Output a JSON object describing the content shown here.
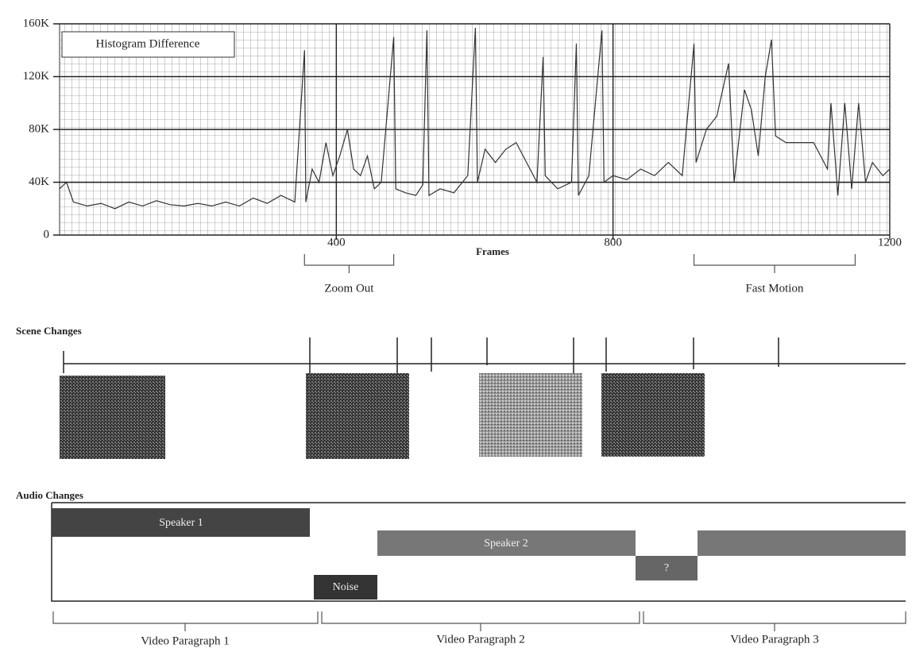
{
  "chart_data": {
    "type": "line",
    "legend_label": "Histogram Difference",
    "x_label": "Frames",
    "xlim": [
      0,
      1200
    ],
    "xticks": [
      400,
      800,
      1200
    ],
    "ylim": [
      0,
      160000
    ],
    "yticks": [
      0,
      {
        "value": 40000,
        "label": "40K"
      },
      {
        "value": 80000,
        "label": "80K"
      },
      {
        "value": 120000,
        "label": "120K"
      },
      {
        "value": 160000,
        "label": "160K"
      }
    ],
    "grid": true,
    "color": "#333333",
    "x": [
      0,
      10,
      20,
      40,
      60,
      80,
      100,
      120,
      140,
      160,
      180,
      200,
      220,
      240,
      260,
      280,
      300,
      320,
      340,
      354,
      356,
      365,
      375,
      385,
      395,
      405,
      416,
      425,
      435,
      445,
      455,
      465,
      483,
      486,
      500,
      515,
      525,
      531,
      534,
      550,
      570,
      590,
      601,
      604,
      615,
      630,
      645,
      660,
      675,
      690,
      699,
      702,
      720,
      740,
      747,
      750,
      765,
      784,
      787,
      800,
      820,
      840,
      860,
      880,
      900,
      917,
      920,
      935,
      950,
      967,
      975,
      990,
      1000,
      1010,
      1020,
      1029,
      1035,
      1050,
      1070,
      1090,
      1110,
      1115,
      1125,
      1135,
      1145,
      1155,
      1165,
      1175,
      1190,
      1200
    ],
    "values": [
      35000,
      40000,
      25000,
      22000,
      24000,
      20000,
      25000,
      22000,
      26000,
      23000,
      22000,
      24000,
      22000,
      25000,
      22000,
      28000,
      24000,
      30000,
      25000,
      140000,
      25000,
      50000,
      40000,
      70000,
      45000,
      60000,
      80000,
      50000,
      45000,
      60000,
      35000,
      40000,
      150000,
      35000,
      32000,
      30000,
      38000,
      155000,
      30000,
      35000,
      32000,
      45000,
      157000,
      40000,
      65000,
      55000,
      65000,
      70000,
      55000,
      40000,
      135000,
      45000,
      35000,
      40000,
      145000,
      30000,
      45000,
      155000,
      40000,
      45000,
      42000,
      50000,
      45000,
      55000,
      45000,
      145000,
      55000,
      80000,
      90000,
      130000,
      40000,
      110000,
      95000,
      60000,
      120000,
      148000,
      75000,
      70000,
      70000,
      70000,
      50000,
      100000,
      30000,
      100000,
      35000,
      100000,
      40000,
      55000,
      45000,
      50000
    ],
    "annotations": [
      {
        "text": "Zoom Out",
        "range": [
          354,
          483
        ]
      },
      {
        "text": "Fast Motion",
        "range": [
          917,
          1150
        ]
      }
    ]
  },
  "scene_changes": {
    "title": "Scene Changes"
  },
  "audio_changes": {
    "title": "Audio Changes",
    "segments": [
      "Speaker 1",
      "Speaker 2",
      "Noise",
      "?"
    ]
  },
  "video_paragraphs": [
    "Video Paragraph 1",
    "Video Paragraph 2",
    "Video Paragraph 3"
  ]
}
